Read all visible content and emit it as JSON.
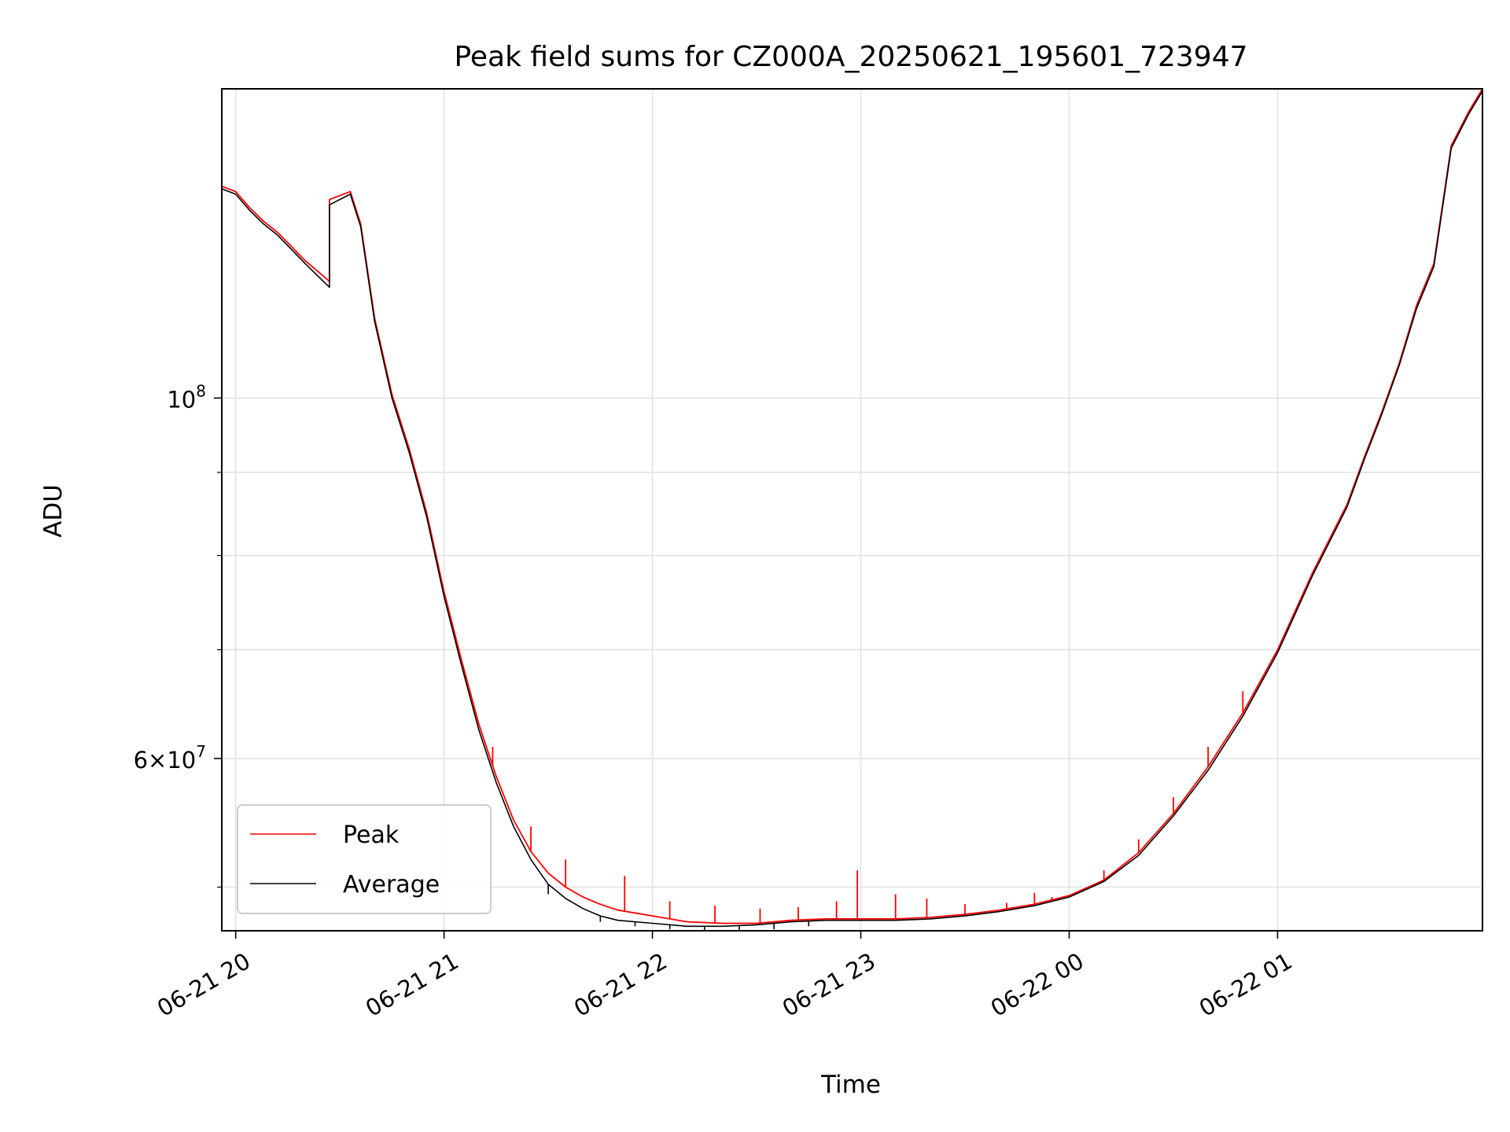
{
  "chart_data": {
    "type": "line",
    "title": "Peak field sums for CZ000A_20250621_195601_723947",
    "xlabel": "Time",
    "ylabel": "ADU",
    "yscale": "log",
    "ylim": [
      47000000,
      155000000
    ],
    "xlim": [
      "2025-06-21T19:56:00",
      "2025-06-22T01:59:00"
    ],
    "x_ticks": [
      {
        "value": "2025-06-21T20:00",
        "label": "06-21 20"
      },
      {
        "value": "2025-06-21T21:00",
        "label": "06-21 21"
      },
      {
        "value": "2025-06-21T22:00",
        "label": "06-21 22"
      },
      {
        "value": "2025-06-21T23:00",
        "label": "06-21 23"
      },
      {
        "value": "2025-06-22T00:00",
        "label": "06-22 00"
      },
      {
        "value": "2025-06-22T01:00",
        "label": "06-22 01"
      }
    ],
    "y_ticks_major": [
      {
        "value": 60000000,
        "base": "6",
        "exp": "7",
        "times": true
      },
      {
        "value": 100000000,
        "base": "10",
        "exp": "8",
        "times": false
      }
    ],
    "y_ticks_minor": [
      50000000,
      70000000,
      80000000,
      90000000
    ],
    "grid": true,
    "legend_position": "lower-left",
    "series": [
      {
        "name": "Peak",
        "color": "#ff0000",
        "x": [
          "2025-06-21T19:56",
          "2025-06-21T20:00",
          "2025-06-21T20:04",
          "2025-06-21T20:08",
          "2025-06-21T20:12",
          "2025-06-21T20:16",
          "2025-06-21T20:20",
          "2025-06-21T20:27",
          "2025-06-21T20:27",
          "2025-06-21T20:33",
          "2025-06-21T20:36",
          "2025-06-21T20:40",
          "2025-06-21T20:45",
          "2025-06-21T20:50",
          "2025-06-21T20:55",
          "2025-06-21T21:00",
          "2025-06-21T21:05",
          "2025-06-21T21:10",
          "2025-06-21T21:15",
          "2025-06-21T21:20",
          "2025-06-21T21:25",
          "2025-06-21T21:30",
          "2025-06-21T21:35",
          "2025-06-21T21:40",
          "2025-06-21T21:45",
          "2025-06-21T21:50",
          "2025-06-21T22:00",
          "2025-06-21T22:10",
          "2025-06-21T22:20",
          "2025-06-21T22:30",
          "2025-06-21T22:40",
          "2025-06-21T22:50",
          "2025-06-21T23:00",
          "2025-06-21T23:10",
          "2025-06-21T23:20",
          "2025-06-21T23:30",
          "2025-06-21T23:40",
          "2025-06-21T23:50",
          "2025-06-22T00:00",
          "2025-06-22T00:10",
          "2025-06-22T00:20",
          "2025-06-22T00:30",
          "2025-06-22T00:40",
          "2025-06-22T00:50",
          "2025-06-22T01:00",
          "2025-06-22T01:10",
          "2025-06-22T01:20",
          "2025-06-22T01:25",
          "2025-06-22T01:30",
          "2025-06-22T01:35",
          "2025-06-22T01:40",
          "2025-06-22T01:45",
          "2025-06-22T01:50",
          "2025-06-22T01:55",
          "2025-06-22T01:59"
        ],
        "y": [
          135000000,
          134000000,
          131000000,
          128500000,
          126500000,
          124000000,
          121500000,
          118000000,
          132500000,
          134000000,
          128000000,
          112000000,
          100500000,
          93000000,
          85000000,
          76000000,
          69000000,
          63000000,
          58500000,
          55000000,
          52600000,
          51000000,
          50000000,
          49300000,
          48800000,
          48400000,
          48000000,
          47600000,
          47500000,
          47500000,
          47700000,
          47800000,
          47800000,
          47800000,
          47900000,
          48100000,
          48400000,
          48800000,
          49400000,
          50500000,
          52500000,
          55500000,
          59300000,
          64000000,
          70000000,
          78000000,
          86000000,
          92000000,
          98000000,
          105000000,
          114000000,
          121000000,
          143000000,
          150000000,
          155000000
        ],
        "spikes": [
          {
            "x": "2025-06-21T20:27",
            "y": 132500000
          },
          {
            "x": "2025-06-21T20:33",
            "y": 134000000
          },
          {
            "x": "2025-06-21T21:14",
            "y": 61000000
          },
          {
            "x": "2025-06-21T21:25",
            "y": 54500000
          },
          {
            "x": "2025-06-21T21:35",
            "y": 52000000
          },
          {
            "x": "2025-06-21T21:52",
            "y": 50800000
          },
          {
            "x": "2025-06-21T22:05",
            "y": 49000000
          },
          {
            "x": "2025-06-21T22:18",
            "y": 48700000
          },
          {
            "x": "2025-06-21T22:31",
            "y": 48500000
          },
          {
            "x": "2025-06-21T22:42",
            "y": 48600000
          },
          {
            "x": "2025-06-21T22:53",
            "y": 49000000
          },
          {
            "x": "2025-06-21T22:59",
            "y": 51200000
          },
          {
            "x": "2025-06-21T23:10",
            "y": 49500000
          },
          {
            "x": "2025-06-21T23:19",
            "y": 49200000
          },
          {
            "x": "2025-06-21T23:30",
            "y": 48800000
          },
          {
            "x": "2025-06-21T23:42",
            "y": 48900000
          },
          {
            "x": "2025-06-21T23:50",
            "y": 49600000
          },
          {
            "x": "2025-06-21T23:55",
            "y": 49300000
          },
          {
            "x": "2025-06-22T00:10",
            "y": 51200000
          },
          {
            "x": "2025-06-22T00:20",
            "y": 53500000
          },
          {
            "x": "2025-06-22T00:30",
            "y": 56800000
          },
          {
            "x": "2025-06-22T00:40",
            "y": 61000000
          },
          {
            "x": "2025-06-22T00:50",
            "y": 66000000
          }
        ]
      },
      {
        "name": "Average",
        "color": "#000000",
        "x": [
          "2025-06-21T19:56",
          "2025-06-21T20:00",
          "2025-06-21T20:04",
          "2025-06-21T20:08",
          "2025-06-21T20:12",
          "2025-06-21T20:16",
          "2025-06-21T20:20",
          "2025-06-21T20:27",
          "2025-06-21T20:27",
          "2025-06-21T20:33",
          "2025-06-21T20:36",
          "2025-06-21T20:40",
          "2025-06-21T20:45",
          "2025-06-21T20:50",
          "2025-06-21T20:55",
          "2025-06-21T21:00",
          "2025-06-21T21:05",
          "2025-06-21T21:10",
          "2025-06-21T21:15",
          "2025-06-21T21:20",
          "2025-06-21T21:25",
          "2025-06-21T21:30",
          "2025-06-21T21:35",
          "2025-06-21T21:40",
          "2025-06-21T21:45",
          "2025-06-21T21:50",
          "2025-06-21T22:00",
          "2025-06-21T22:10",
          "2025-06-21T22:20",
          "2025-06-21T22:30",
          "2025-06-21T22:40",
          "2025-06-21T22:50",
          "2025-06-21T23:00",
          "2025-06-21T23:10",
          "2025-06-21T23:20",
          "2025-06-21T23:30",
          "2025-06-21T23:40",
          "2025-06-21T23:50",
          "2025-06-22T00:00",
          "2025-06-22T00:10",
          "2025-06-22T00:20",
          "2025-06-22T00:30",
          "2025-06-22T00:40",
          "2025-06-22T00:50",
          "2025-06-22T01:00",
          "2025-06-22T01:10",
          "2025-06-22T01:20",
          "2025-06-22T01:25",
          "2025-06-22T01:30",
          "2025-06-22T01:35",
          "2025-06-22T01:40",
          "2025-06-22T01:45",
          "2025-06-22T01:50",
          "2025-06-22T01:55",
          "2025-06-22T01:59"
        ],
        "y": [
          134500000,
          133500000,
          130500000,
          128000000,
          126000000,
          123500000,
          121000000,
          117000000,
          131500000,
          133500000,
          127500000,
          111500000,
          100000000,
          92500000,
          84500000,
          75500000,
          68500000,
          62500000,
          58000000,
          54500000,
          52000000,
          50200000,
          49200000,
          48500000,
          48000000,
          47700000,
          47500000,
          47300000,
          47300000,
          47400000,
          47600000,
          47700000,
          47700000,
          47700000,
          47800000,
          48000000,
          48300000,
          48700000,
          49300000,
          50400000,
          52300000,
          55300000,
          59000000,
          63700000,
          69700000,
          77700000,
          85700000,
          91700000,
          97700000,
          104700000,
          113500000,
          120500000,
          142500000,
          149500000,
          154500000
        ],
        "dips": [
          {
            "x": "2025-06-21T21:30",
            "y": 49500000
          },
          {
            "x": "2025-06-21T21:45",
            "y": 47600000
          },
          {
            "x": "2025-06-21T21:55",
            "y": 47300000
          },
          {
            "x": "2025-06-21T22:05",
            "y": 47100000
          },
          {
            "x": "2025-06-21T22:15",
            "y": 47000000
          },
          {
            "x": "2025-06-21T22:25",
            "y": 47000000
          },
          {
            "x": "2025-06-21T22:35",
            "y": 47100000
          },
          {
            "x": "2025-06-21T22:45",
            "y": 47300000
          }
        ]
      }
    ]
  }
}
